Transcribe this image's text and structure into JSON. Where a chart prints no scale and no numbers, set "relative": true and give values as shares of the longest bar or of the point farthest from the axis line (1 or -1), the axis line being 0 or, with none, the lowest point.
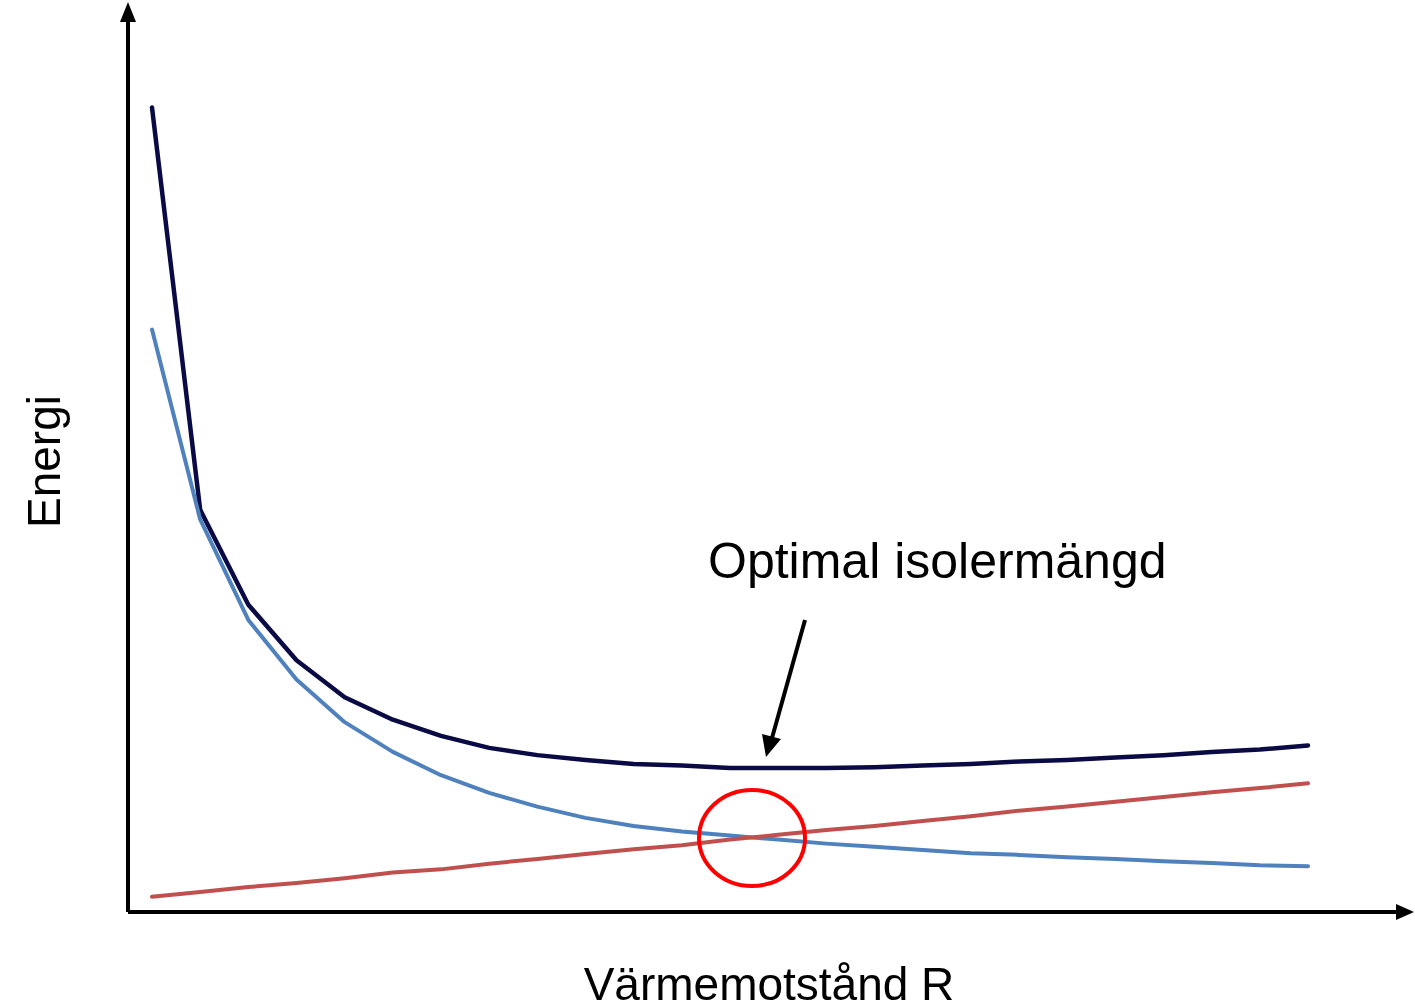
{
  "chart_data": {
    "type": "line",
    "relative": true,
    "xlabel": "Värmemotstånd R",
    "ylabel": "Energi",
    "annotations": [
      "Optimal isolermängd"
    ],
    "marker": "none",
    "legend": false,
    "grid": false,
    "categories": [
      null,
      null,
      null,
      null,
      null,
      null,
      null,
      null,
      null,
      null,
      null,
      null,
      null,
      null,
      null,
      null,
      null,
      null,
      null,
      null,
      null,
      null,
      null,
      null,
      null
    ],
    "series": [
      {
        "color": "#0a0a45",
        "values": [
          1.0,
          0.5,
          0.382,
          0.313,
          0.267,
          0.239,
          0.219,
          0.204,
          0.195,
          0.189,
          0.184,
          0.182,
          0.179,
          0.179,
          0.179,
          0.18,
          0.182,
          0.184,
          0.187,
          0.189,
          0.192,
          0.195,
          0.199,
          0.202,
          0.207
        ]
      },
      {
        "color": "#4f81bd",
        "values": [
          0.724,
          0.488,
          0.363,
          0.289,
          0.236,
          0.199,
          0.17,
          0.148,
          0.131,
          0.117,
          0.107,
          0.1,
          0.095,
          0.09,
          0.085,
          0.081,
          0.077,
          0.073,
          0.071,
          0.068,
          0.066,
          0.063,
          0.061,
          0.058,
          0.057
        ]
      },
      {
        "color": "#c0504d",
        "values": [
          0.019,
          0.025,
          0.031,
          0.036,
          0.042,
          0.049,
          0.053,
          0.06,
          0.066,
          0.072,
          0.078,
          0.083,
          0.09,
          0.096,
          0.102,
          0.107,
          0.113,
          0.119,
          0.126,
          0.131,
          0.137,
          0.143,
          0.149,
          0.154,
          0.16
        ]
      }
    ]
  }
}
